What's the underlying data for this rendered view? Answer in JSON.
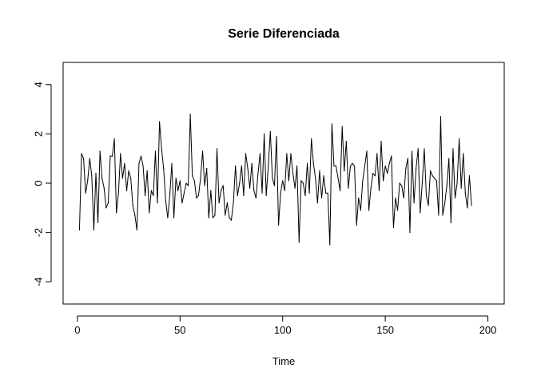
{
  "chart_data": {
    "type": "line",
    "title": "Serie Diferenciada",
    "xlabel": "Time",
    "ylabel": "",
    "xlim": [
      1,
      200
    ],
    "ylim": [
      -4.9,
      4.9
    ],
    "x_ticks": [
      0,
      50,
      100,
      150,
      200
    ],
    "y_ticks": [
      -4,
      -2,
      0,
      2,
      4
    ],
    "x_tick_labels": [
      "0",
      "50",
      "100",
      "150",
      "200"
    ],
    "y_tick_labels": [
      "-4",
      "-2",
      "0",
      "2",
      "4"
    ],
    "grid": false,
    "series": [
      {
        "color": "#000000",
        "values": [
          -1.9,
          1.2,
          1.0,
          -0.4,
          0.1,
          1.0,
          0.3,
          -1.9,
          0.4,
          -1.6,
          1.3,
          0.2,
          -0.2,
          -1.0,
          -0.8,
          1.1,
          1.1,
          1.8,
          -1.2,
          -0.4,
          1.2,
          0.2,
          0.8,
          -0.3,
          0.5,
          0.2,
          -0.9,
          -1.3,
          -1.9,
          0.8,
          1.1,
          0.7,
          -0.5,
          0.5,
          -1.2,
          -0.3,
          -0.5,
          1.3,
          -0.8,
          2.5,
          1.4,
          0.6,
          -0.7,
          -1.4,
          -0.5,
          0.8,
          -1.4,
          0.2,
          -0.3,
          0.1,
          -0.8,
          -0.4,
          0.0,
          -0.1,
          2.8,
          0.3,
          0.1,
          -0.6,
          -0.5,
          0.2,
          1.3,
          -0.1,
          0.6,
          -1.4,
          -0.3,
          -1.4,
          -1.3,
          1.4,
          -0.8,
          -0.3,
          -0.1,
          -1.3,
          -0.8,
          -1.4,
          -1.5,
          -0.8,
          0.7,
          -0.5,
          0.0,
          0.7,
          -0.5,
          1.2,
          0.6,
          -0.2,
          0.8,
          -0.3,
          -0.6,
          0.4,
          1.2,
          -0.4,
          2.0,
          -0.5,
          0.7,
          2.1,
          0.2,
          -0.1,
          1.9,
          -1.7,
          -0.4,
          0.1,
          -0.3,
          1.2,
          0.1,
          1.2,
          0.4,
          -0.2,
          0.7,
          -2.4,
          0.1,
          0.0,
          -0.5,
          0.8,
          -0.4,
          1.8,
          0.8,
          0.2,
          -0.8,
          0.5,
          -0.6,
          0.3,
          -0.4,
          -0.4,
          -2.5,
          2.4,
          0.7,
          0.7,
          0.2,
          -0.3,
          2.3,
          0.5,
          1.7,
          -0.2,
          0.7,
          0.8,
          0.7,
          -1.7,
          -0.6,
          -1.1,
          0.1,
          0.7,
          1.3,
          -1.1,
          -0.2,
          0.4,
          0.3,
          1.2,
          -0.3,
          1.7,
          0.1,
          0.7,
          0.4,
          0.8,
          1.1,
          -1.8,
          -0.6,
          -1.1,
          0.0,
          -0.1,
          -0.6,
          0.6,
          1.0,
          -2.0,
          1.3,
          -0.8,
          0.6,
          1.4,
          -1.2,
          0.0,
          1.4,
          -0.5,
          -0.9,
          0.5,
          0.3,
          0.2,
          0.1,
          -1.3,
          2.7,
          -1.3,
          -0.8,
          -0.1,
          1.0,
          -1.6,
          1.4,
          -0.6,
          0.0,
          1.8,
          -0.2,
          1.2,
          -0.4,
          -1.0,
          0.3,
          -0.9
        ]
      }
    ]
  }
}
